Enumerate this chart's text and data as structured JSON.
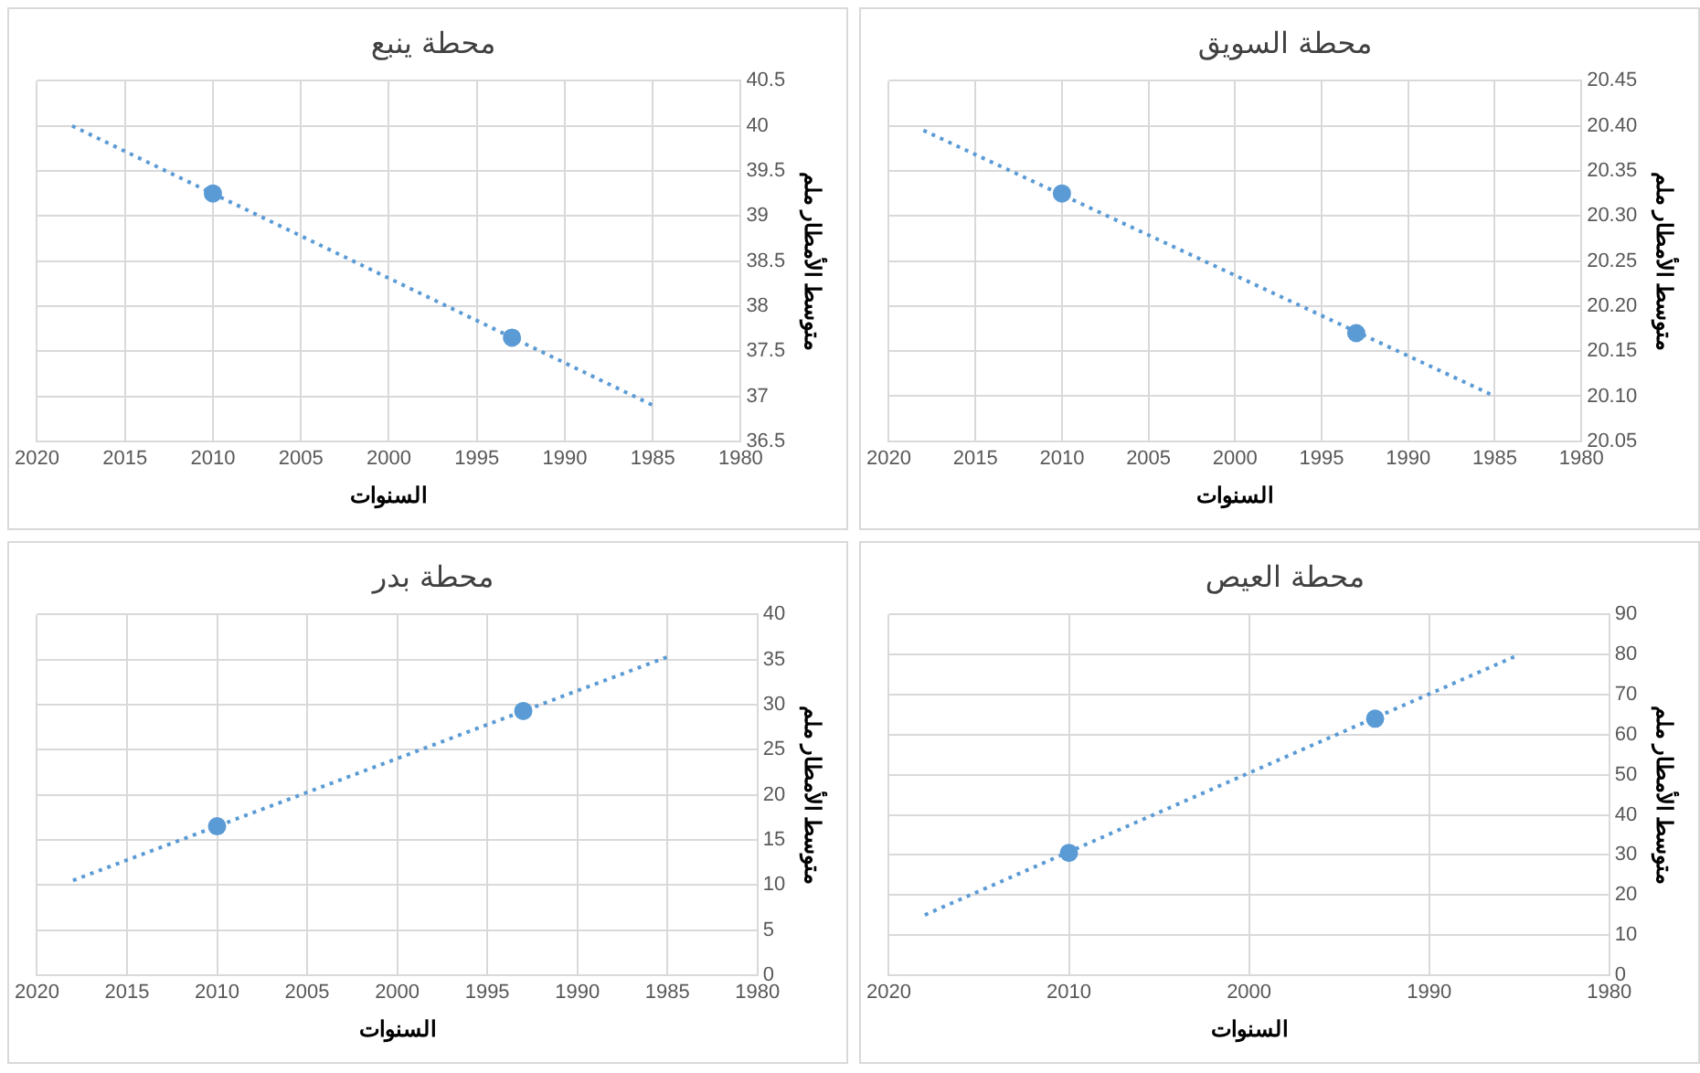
{
  "chart_data": [
    {
      "type": "scatter",
      "title": "محطة ينبع",
      "xlabel": "السنوات",
      "ylabel": "متوسط الأمطار ملم",
      "xlim": [
        2020,
        1980
      ],
      "xticks": [
        2020,
        2015,
        2010,
        2005,
        2000,
        1995,
        1990,
        1985,
        1980
      ],
      "ylim": [
        36.5,
        40.5
      ],
      "yticks": [
        36.5,
        37,
        37.5,
        38,
        38.5,
        39,
        39.5,
        40,
        40.5
      ],
      "grid": true,
      "series": [
        {
          "color": "#5b9bd5",
          "marker": "circle",
          "x": [
            2010,
            1993
          ],
          "values": [
            39.25,
            37.65
          ]
        },
        {
          "type": "line",
          "color": "#5b9bd5",
          "marker": "none",
          "line_style": "dotted",
          "x": [
            2018,
            1985
          ],
          "values": [
            40.0,
            36.9
          ]
        }
      ]
    },
    {
      "type": "scatter",
      "title": "محطة السويق",
      "xlabel": "السنوات",
      "ylabel": "متوسط الأمطار ملم",
      "xlim": [
        2020,
        1980
      ],
      "xticks": [
        2020,
        2015,
        2010,
        2005,
        2000,
        1995,
        1990,
        1985,
        1980
      ],
      "ylim": [
        20.05,
        20.45
      ],
      "yticks": [
        {
          "value": 20.05,
          "label": "20.05"
        },
        {
          "value": 20.1,
          "label": "20.10"
        },
        {
          "value": 20.15,
          "label": "20.15"
        },
        {
          "value": 20.2,
          "label": "20.20"
        },
        {
          "value": 20.25,
          "label": "20.25"
        },
        {
          "value": 20.3,
          "label": "20.30"
        },
        {
          "value": 20.35,
          "label": "20.35"
        },
        {
          "value": 20.4,
          "label": "20.40"
        },
        {
          "value": 20.45,
          "label": "20.45"
        }
      ],
      "grid": true,
      "series": [
        {
          "color": "#5b9bd5",
          "marker": "circle",
          "x": [
            2010,
            1993
          ],
          "values": [
            20.325,
            20.17
          ]
        },
        {
          "type": "line",
          "color": "#5b9bd5",
          "marker": "none",
          "line_style": "dotted",
          "x": [
            2018,
            1985
          ],
          "values": [
            20.395,
            20.1
          ]
        }
      ]
    },
    {
      "type": "scatter",
      "title": "محطة بدر",
      "xlabel": "السنوات",
      "ylabel": "متوسط الأمطار ملم",
      "xlim": [
        2020,
        1980
      ],
      "xticks": [
        2020,
        2015,
        2010,
        2005,
        2000,
        1995,
        1990,
        1985,
        1980
      ],
      "ylim": [
        0,
        40
      ],
      "yticks": [
        0,
        5,
        10,
        15,
        20,
        25,
        30,
        35,
        40
      ],
      "grid": true,
      "series": [
        {
          "color": "#5b9bd5",
          "marker": "circle",
          "x": [
            2010,
            1993
          ],
          "values": [
            16.5,
            29.3
          ]
        },
        {
          "type": "line",
          "color": "#5b9bd5",
          "marker": "none",
          "line_style": "dotted",
          "x": [
            2018,
            1985
          ],
          "values": [
            10.5,
            35.3
          ]
        }
      ]
    },
    {
      "type": "scatter",
      "title": "محطة العيص",
      "xlabel": "السنوات",
      "ylabel": "متوسط الأمطار ملم",
      "xlim": [
        2020,
        1980
      ],
      "xticks": [
        2020,
        2010,
        2000,
        1990,
        1980
      ],
      "ylim": [
        0,
        90
      ],
      "yticks": [
        0,
        10,
        20,
        30,
        40,
        50,
        60,
        70,
        80,
        90
      ],
      "grid": true,
      "series": [
        {
          "color": "#5b9bd5",
          "marker": "circle",
          "x": [
            2010,
            1993
          ],
          "values": [
            30.5,
            64
          ]
        },
        {
          "type": "line",
          "color": "#5b9bd5",
          "marker": "none",
          "line_style": "dotted",
          "x": [
            2018,
            1985
          ],
          "values": [
            15,
            80
          ]
        }
      ]
    }
  ]
}
